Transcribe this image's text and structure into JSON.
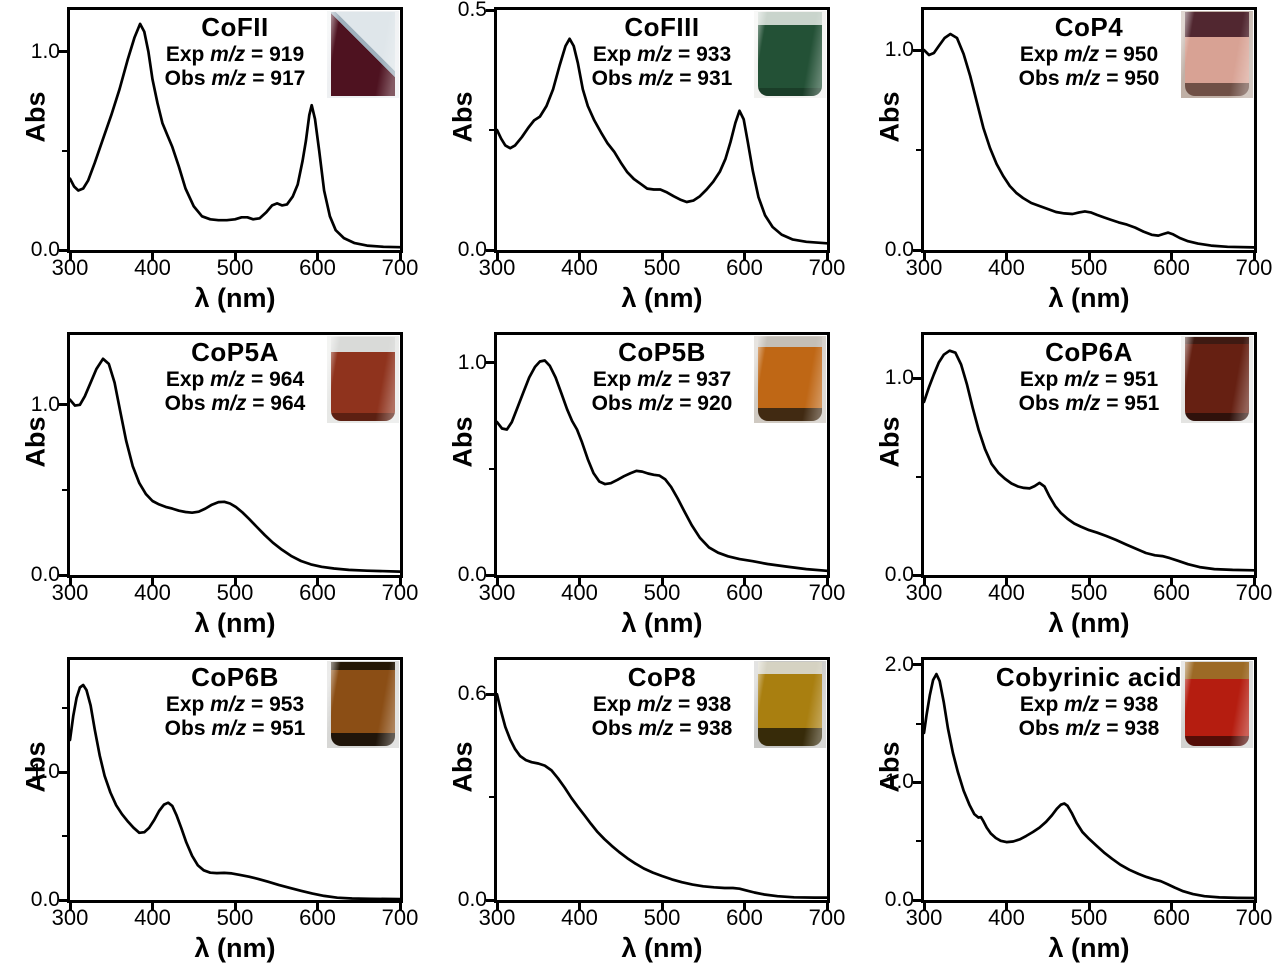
{
  "figure": {
    "type": "uv-vis-absorption-spectra-grid",
    "xlabel": "λ (nm)",
    "ylabel": "Abs",
    "x_tick_values": [
      300,
      400,
      500,
      600,
      700
    ],
    "x_tick_labels": [
      "300",
      "400",
      "500",
      "600",
      "700"
    ],
    "xlim": [
      300,
      700
    ],
    "grid": "off",
    "curve_color": "#000000",
    "background_color": "#ffffff"
  },
  "chart_data": [
    {
      "type": "line",
      "title": "CoFII",
      "exp": [
        "Exp ",
        "m/z",
        " = 919"
      ],
      "obs": [
        "Obs ",
        "m/z",
        " = 917"
      ],
      "xlabel": "λ (nm)",
      "ylabel": "Abs",
      "ylim": [
        0,
        1.21
      ],
      "yticks": [
        {
          "v": 1.0,
          "label": "1.0"
        },
        {
          "v": 0.0,
          "label": "0.0"
        }
      ],
      "yminor": [
        0.5
      ],
      "x": [
        300,
        305,
        310,
        316,
        322,
        330,
        340,
        350,
        360,
        370,
        378,
        385,
        390,
        395,
        400,
        406,
        412,
        418,
        424,
        432,
        440,
        450,
        460,
        470,
        480,
        490,
        500,
        508,
        515,
        522,
        530,
        538,
        545,
        551,
        557,
        563,
        570,
        576,
        582,
        586,
        590,
        593,
        597,
        602,
        608,
        615,
        622,
        632,
        645,
        660,
        680,
        700
      ],
      "y": [
        0.36,
        0.32,
        0.3,
        0.31,
        0.35,
        0.44,
        0.56,
        0.68,
        0.81,
        0.96,
        1.07,
        1.14,
        1.1,
        1.0,
        0.86,
        0.74,
        0.64,
        0.58,
        0.52,
        0.42,
        0.31,
        0.22,
        0.17,
        0.155,
        0.15,
        0.15,
        0.155,
        0.165,
        0.165,
        0.155,
        0.16,
        0.19,
        0.225,
        0.235,
        0.225,
        0.23,
        0.27,
        0.33,
        0.45,
        0.55,
        0.68,
        0.73,
        0.66,
        0.5,
        0.3,
        0.17,
        0.1,
        0.06,
        0.035,
        0.022,
        0.016,
        0.014
      ],
      "vial": {
        "style": "tilted",
        "background": "#eef0f2",
        "glass": "#dfe6ea",
        "liquid": "#4e1220",
        "top": "#dfe6ea",
        "bottom": "#35101c",
        "top_frac": 0,
        "bot_frac": 0
      }
    },
    {
      "type": "line",
      "title": "CoFIII",
      "exp": [
        "Exp ",
        "m/z",
        " = 933"
      ],
      "obs": [
        "Obs ",
        "m/z",
        " = 931"
      ],
      "xlabel": "λ (nm)",
      "ylabel": "Abs",
      "ylim": [
        0,
        0.5
      ],
      "yticks": [
        {
          "v": 0.5,
          "label": "0.5"
        },
        {
          "v": 0.0,
          "label": "0.0"
        }
      ],
      "yminor": [
        0.25
      ],
      "x": [
        300,
        305,
        310,
        316,
        322,
        330,
        338,
        345,
        352,
        360,
        368,
        376,
        383,
        388,
        393,
        398,
        404,
        410,
        418,
        426,
        434,
        442,
        450,
        458,
        466,
        474,
        482,
        490,
        498,
        506,
        514,
        522,
        530,
        538,
        546,
        554,
        562,
        570,
        577,
        583,
        589,
        594,
        599,
        604,
        610,
        617,
        625,
        634,
        645,
        658,
        675,
        700
      ],
      "y": [
        0.25,
        0.232,
        0.218,
        0.212,
        0.218,
        0.235,
        0.255,
        0.27,
        0.278,
        0.3,
        0.335,
        0.385,
        0.425,
        0.44,
        0.425,
        0.39,
        0.335,
        0.3,
        0.27,
        0.245,
        0.222,
        0.205,
        0.182,
        0.162,
        0.148,
        0.138,
        0.128,
        0.126,
        0.126,
        0.12,
        0.112,
        0.105,
        0.1,
        0.103,
        0.112,
        0.126,
        0.142,
        0.163,
        0.19,
        0.225,
        0.265,
        0.29,
        0.272,
        0.225,
        0.165,
        0.11,
        0.072,
        0.048,
        0.032,
        0.022,
        0.017,
        0.014
      ],
      "vial": {
        "style": "upright",
        "background": "#f1f1ef",
        "glass": "#c9d4cc",
        "liquid": "#235136",
        "top": "#c9d4cc",
        "bottom": "#1a3d28",
        "top_frac": 0.16,
        "bot_frac": 0.1
      }
    },
    {
      "type": "line",
      "title": "CoP4",
      "exp": [
        "Exp ",
        "m/z",
        " = 950"
      ],
      "obs": [
        "Obs ",
        "m/z",
        " = 950"
      ],
      "xlabel": "λ (nm)",
      "ylabel": "Abs",
      "ylim": [
        0,
        1.2
      ],
      "yticks": [
        {
          "v": 1.0,
          "label": "1.0"
        },
        {
          "v": 0.0,
          "label": "0.0"
        }
      ],
      "yminor": [
        0.5
      ],
      "x": [
        300,
        306,
        312,
        318,
        325,
        332,
        340,
        348,
        356,
        364,
        372,
        380,
        388,
        396,
        404,
        412,
        420,
        430,
        440,
        450,
        460,
        470,
        480,
        488,
        495,
        502,
        510,
        518,
        526,
        536,
        546,
        556,
        566,
        576,
        584,
        590,
        596,
        602,
        610,
        620,
        632,
        648,
        668,
        700
      ],
      "y": [
        1.0,
        0.975,
        0.985,
        1.02,
        1.06,
        1.08,
        1.06,
        0.98,
        0.87,
        0.74,
        0.61,
        0.51,
        0.43,
        0.37,
        0.32,
        0.285,
        0.26,
        0.235,
        0.22,
        0.205,
        0.19,
        0.183,
        0.18,
        0.188,
        0.193,
        0.188,
        0.175,
        0.163,
        0.152,
        0.138,
        0.127,
        0.112,
        0.092,
        0.076,
        0.072,
        0.08,
        0.087,
        0.078,
        0.06,
        0.044,
        0.032,
        0.022,
        0.016,
        0.013
      ],
      "vial": {
        "style": "upright",
        "background": "#c0b0a6",
        "glass": "#d8c4b8",
        "liquid": "#d8a294",
        "top": "#512730",
        "bottom": "#705046",
        "top_frac": 0.3,
        "bot_frac": 0.16
      }
    },
    {
      "type": "line",
      "title": "CoP5A",
      "exp": [
        "Exp ",
        "m/z",
        " = 964"
      ],
      "obs": [
        "Obs ",
        "m/z",
        " = 964"
      ],
      "xlabel": "λ (nm)",
      "ylabel": "Abs",
      "ylim": [
        0,
        1.41
      ],
      "yticks": [
        {
          "v": 1.0,
          "label": "1.0"
        },
        {
          "v": 0.0,
          "label": "0.0"
        }
      ],
      "yminor": [
        0.5
      ],
      "x": [
        300,
        306,
        312,
        318,
        325,
        332,
        340,
        347,
        354,
        361,
        368,
        376,
        384,
        392,
        400,
        408,
        416,
        424,
        432,
        440,
        448,
        456,
        464,
        472,
        480,
        487,
        494,
        501,
        509,
        517,
        526,
        536,
        546,
        557,
        568,
        580,
        592,
        605,
        620,
        638,
        660,
        700
      ],
      "y": [
        1.03,
        0.995,
        1.0,
        1.05,
        1.13,
        1.21,
        1.27,
        1.24,
        1.13,
        0.96,
        0.79,
        0.64,
        0.54,
        0.475,
        0.435,
        0.415,
        0.4,
        0.39,
        0.378,
        0.37,
        0.366,
        0.372,
        0.39,
        0.413,
        0.428,
        0.43,
        0.42,
        0.4,
        0.368,
        0.33,
        0.285,
        0.235,
        0.19,
        0.148,
        0.112,
        0.082,
        0.062,
        0.048,
        0.038,
        0.03,
        0.025,
        0.02
      ],
      "vial": {
        "style": "upright",
        "background": "#e7e8e6",
        "glass": "#d9dad8",
        "liquid": "#8f331d",
        "top": "#d9dad8",
        "bottom": "#5c2012",
        "top_frac": 0.18,
        "bot_frac": 0.1
      }
    },
    {
      "type": "line",
      "title": "CoP5B",
      "exp": [
        "Exp ",
        "m/z",
        " = 937"
      ],
      "obs": [
        "Obs ",
        "m/z",
        " = 920"
      ],
      "xlabel": "λ (nm)",
      "ylabel": "Abs",
      "ylim": [
        0,
        1.13
      ],
      "yticks": [
        {
          "v": 1.0,
          "label": "1.0"
        },
        {
          "v": 0.0,
          "label": "0.0"
        }
      ],
      "yminor": [
        0.5
      ],
      "x": [
        300,
        306,
        312,
        318,
        325,
        332,
        339,
        346,
        352,
        358,
        364,
        371,
        378,
        385,
        391,
        397,
        403,
        410,
        417,
        424,
        431,
        438,
        446,
        454,
        462,
        469,
        476,
        483,
        490,
        497,
        504,
        511,
        519,
        527,
        536,
        546,
        557,
        568,
        580,
        594,
        610,
        628,
        650,
        675,
        700
      ],
      "y": [
        0.72,
        0.69,
        0.685,
        0.72,
        0.79,
        0.86,
        0.93,
        0.98,
        1.005,
        1.01,
        0.985,
        0.93,
        0.855,
        0.78,
        0.725,
        0.685,
        0.625,
        0.545,
        0.48,
        0.44,
        0.428,
        0.432,
        0.448,
        0.465,
        0.48,
        0.49,
        0.487,
        0.478,
        0.472,
        0.468,
        0.45,
        0.415,
        0.36,
        0.3,
        0.235,
        0.175,
        0.13,
        0.105,
        0.088,
        0.075,
        0.065,
        0.052,
        0.04,
        0.028,
        0.02
      ],
      "vial": {
        "style": "upright",
        "background": "#cfc9c1",
        "glass": "#c4bfb7",
        "liquid": "#bf6715",
        "top": "#c4bfb7",
        "bottom": "#412a12",
        "top_frac": 0.12,
        "bot_frac": 0.16
      }
    },
    {
      "type": "line",
      "title": "CoP6A",
      "exp": [
        "Exp ",
        "m/z",
        " = 951"
      ],
      "obs": [
        "Obs ",
        "m/z",
        " = 951"
      ],
      "xlabel": "λ (nm)",
      "ylabel": "Abs",
      "ylim": [
        0,
        1.22
      ],
      "yticks": [
        {
          "v": 1.0,
          "label": "1.0"
        },
        {
          "v": 0.0,
          "label": "0.0"
        }
      ],
      "yminor": [
        0.5
      ],
      "x": [
        300,
        306,
        312,
        318,
        324,
        331,
        338,
        345,
        352,
        359,
        366,
        374,
        382,
        390,
        398,
        406,
        414,
        421,
        428,
        434,
        440,
        446,
        452,
        459,
        466,
        474,
        482,
        490,
        500,
        510,
        521,
        533,
        545,
        557,
        569,
        580,
        589,
        598,
        608,
        620,
        634,
        652,
        674,
        700
      ],
      "y": [
        0.88,
        0.955,
        1.02,
        1.08,
        1.12,
        1.14,
        1.13,
        1.07,
        0.97,
        0.85,
        0.74,
        0.64,
        0.565,
        0.52,
        0.49,
        0.465,
        0.45,
        0.443,
        0.44,
        0.452,
        0.468,
        0.45,
        0.4,
        0.35,
        0.315,
        0.285,
        0.262,
        0.246,
        0.228,
        0.215,
        0.198,
        0.178,
        0.155,
        0.133,
        0.112,
        0.1,
        0.096,
        0.086,
        0.072,
        0.055,
        0.04,
        0.03,
        0.026,
        0.024
      ],
      "vial": {
        "style": "upright",
        "background": "#e4e4e2",
        "glass": "#d0d0ce",
        "liquid": "#662012",
        "top": "#3f1a12",
        "bottom": "#2f110b",
        "top_frac": 0.08,
        "bot_frac": 0.1
      }
    },
    {
      "type": "line",
      "title": "CoP6B",
      "exp": [
        "Exp ",
        "m/z",
        " = 953"
      ],
      "obs": [
        "Obs ",
        "m/z",
        " = 951"
      ],
      "xlabel": "λ (nm)",
      "ylabel": "Abs",
      "ylim": [
        0,
        1.875
      ],
      "yticks": [
        {
          "v": 1.0,
          "label": "1.0"
        },
        {
          "v": 0.0,
          "label": "0.0"
        }
      ],
      "yminor": [
        0.5,
        1.5
      ],
      "x": [
        300,
        304,
        308,
        312,
        316,
        320,
        325,
        330,
        336,
        342,
        349,
        356,
        363,
        370,
        377,
        384,
        390,
        396,
        402,
        408,
        414,
        419,
        424,
        429,
        435,
        441,
        448,
        455,
        462,
        470,
        478,
        487,
        496,
        506,
        517,
        528,
        540,
        553,
        566,
        580,
        594,
        608,
        624,
        642,
        665,
        700
      ],
      "y": [
        1.25,
        1.44,
        1.58,
        1.66,
        1.68,
        1.64,
        1.52,
        1.33,
        1.13,
        0.97,
        0.84,
        0.74,
        0.67,
        0.615,
        0.565,
        0.525,
        0.53,
        0.565,
        0.625,
        0.695,
        0.745,
        0.76,
        0.735,
        0.665,
        0.56,
        0.45,
        0.345,
        0.27,
        0.232,
        0.213,
        0.21,
        0.212,
        0.208,
        0.196,
        0.182,
        0.165,
        0.143,
        0.118,
        0.095,
        0.072,
        0.05,
        0.032,
        0.018,
        0.012,
        0.009,
        0.007
      ],
      "vial": {
        "style": "upright",
        "background": "#d7d7d5",
        "glass": "#c8c8c6",
        "liquid": "#8b4e15",
        "top": "#241705",
        "bottom": "#20150a",
        "top_frac": 0.1,
        "bot_frac": 0.16
      }
    },
    {
      "type": "line",
      "title": "CoP8",
      "exp": [
        "Exp ",
        "m/z",
        " = 938"
      ],
      "obs": [
        "Obs ",
        "m/z",
        " = 938"
      ],
      "xlabel": "λ (nm)",
      "ylabel": "Abs",
      "ylim": [
        0,
        0.7
      ],
      "yticks": [
        {
          "v": 0.6,
          "label": "0.6"
        },
        {
          "v": 0.0,
          "label": "0.0"
        }
      ],
      "yminor": [
        0.3
      ],
      "x": [
        300,
        305,
        310,
        316,
        322,
        328,
        335,
        342,
        350,
        358,
        366,
        374,
        382,
        390,
        398,
        406,
        414,
        422,
        430,
        439,
        448,
        458,
        468,
        478,
        489,
        500,
        512,
        524,
        537,
        550,
        563,
        576,
        586,
        594,
        602,
        612,
        624,
        640,
        660,
        685,
        700
      ],
      "y": [
        0.6,
        0.55,
        0.505,
        0.468,
        0.44,
        0.42,
        0.408,
        0.402,
        0.398,
        0.392,
        0.378,
        0.355,
        0.328,
        0.298,
        0.272,
        0.247,
        0.222,
        0.198,
        0.178,
        0.158,
        0.14,
        0.122,
        0.106,
        0.092,
        0.08,
        0.07,
        0.06,
        0.052,
        0.045,
        0.04,
        0.037,
        0.035,
        0.035,
        0.033,
        0.028,
        0.022,
        0.016,
        0.011,
        0.008,
        0.007,
        0.007
      ],
      "vial": {
        "style": "upright",
        "background": "#c7c7c5",
        "glass": "#d5d2c2",
        "liquid": "#a97f10",
        "top": "#d5d2c2",
        "bottom": "#372b09",
        "top_frac": 0.14,
        "bot_frac": 0.22
      }
    },
    {
      "type": "line",
      "title": "Cobyrinic acid",
      "exp": [
        "Exp ",
        "m/z",
        " = 938"
      ],
      "obs": [
        "Obs ",
        "m/z",
        " = 938"
      ],
      "xlabel": "λ (nm)",
      "ylabel": "Abs",
      "ylim": [
        0,
        2.04
      ],
      "yticks": [
        {
          "v": 2.0,
          "label": "2.0"
        },
        {
          "v": 1.0,
          "label": "1.0"
        },
        {
          "v": 0.0,
          "label": "0.0"
        }
      ],
      "yminor": [
        0.5,
        1.5
      ],
      "x": [
        300,
        303,
        307,
        311,
        315,
        319,
        324,
        329,
        335,
        341,
        348,
        355,
        361,
        366,
        369,
        372,
        376,
        381,
        387,
        393,
        400,
        408,
        416,
        424,
        432,
        440,
        448,
        455,
        461,
        466,
        470,
        474,
        479,
        485,
        492,
        500,
        509,
        518,
        528,
        538,
        549,
        560,
        570,
        579,
        587,
        595,
        604,
        614,
        626,
        640,
        658,
        680,
        700
      ],
      "y": [
        1.42,
        1.57,
        1.74,
        1.87,
        1.92,
        1.86,
        1.68,
        1.46,
        1.25,
        1.09,
        0.93,
        0.81,
        0.73,
        0.7,
        0.705,
        0.67,
        0.615,
        0.565,
        0.527,
        0.503,
        0.492,
        0.497,
        0.515,
        0.545,
        0.578,
        0.615,
        0.665,
        0.72,
        0.775,
        0.81,
        0.82,
        0.8,
        0.74,
        0.655,
        0.578,
        0.52,
        0.462,
        0.405,
        0.35,
        0.3,
        0.257,
        0.222,
        0.195,
        0.175,
        0.16,
        0.135,
        0.105,
        0.075,
        0.05,
        0.032,
        0.022,
        0.018,
        0.017
      ],
      "vial": {
        "style": "upright",
        "background": "#d3d3d1",
        "glass": "#c6c6c4",
        "liquid": "#b51d10",
        "top": "#9c6a26",
        "bottom": "#540d07",
        "top_frac": 0.2,
        "bot_frac": 0.12
      }
    }
  ]
}
